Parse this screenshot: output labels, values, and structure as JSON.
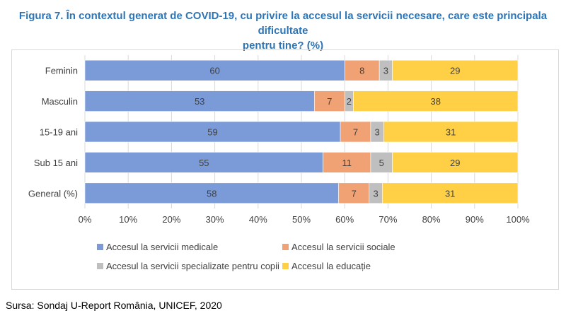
{
  "title_line1": "Figura 7. În contextul generat de COVID-19, cu privire la accesul la servicii necesare, care este principala dificultate",
  "title_line2": "pentru tine? (%)",
  "source": "Sursa: Sondaj U-Report România, UNICEF, 2020",
  "chart_data": {
    "type": "bar",
    "orientation": "horizontal",
    "stacked": "percent",
    "categories": [
      "Feminin",
      "Masculin",
      "15-19 ani",
      "Sub 15 ani",
      "General (%)"
    ],
    "series": [
      {
        "name": "Accesul la servicii medicale",
        "color": "#7b9bd8",
        "values": [
          60,
          53,
          59,
          55,
          58
        ]
      },
      {
        "name": "Accesul la servicii sociale",
        "color": "#f0a274",
        "values": [
          8,
          7,
          7,
          11,
          7
        ]
      },
      {
        "name": "Accesul la servicii specializate pentru copii",
        "color": "#bfbfbf",
        "values": [
          3,
          2,
          3,
          5,
          3
        ]
      },
      {
        "name": "Accesul la educație",
        "color": "#ffd046",
        "values": [
          29,
          38,
          31,
          29,
          31
        ]
      }
    ],
    "x_ticks": [
      "0%",
      "10%",
      "20%",
      "30%",
      "40%",
      "50%",
      "60%",
      "70%",
      "80%",
      "90%",
      "100%"
    ],
    "xlim": [
      0,
      100
    ],
    "grid": true,
    "legend_position": "bottom",
    "title": "",
    "xlabel": "",
    "ylabel": ""
  }
}
